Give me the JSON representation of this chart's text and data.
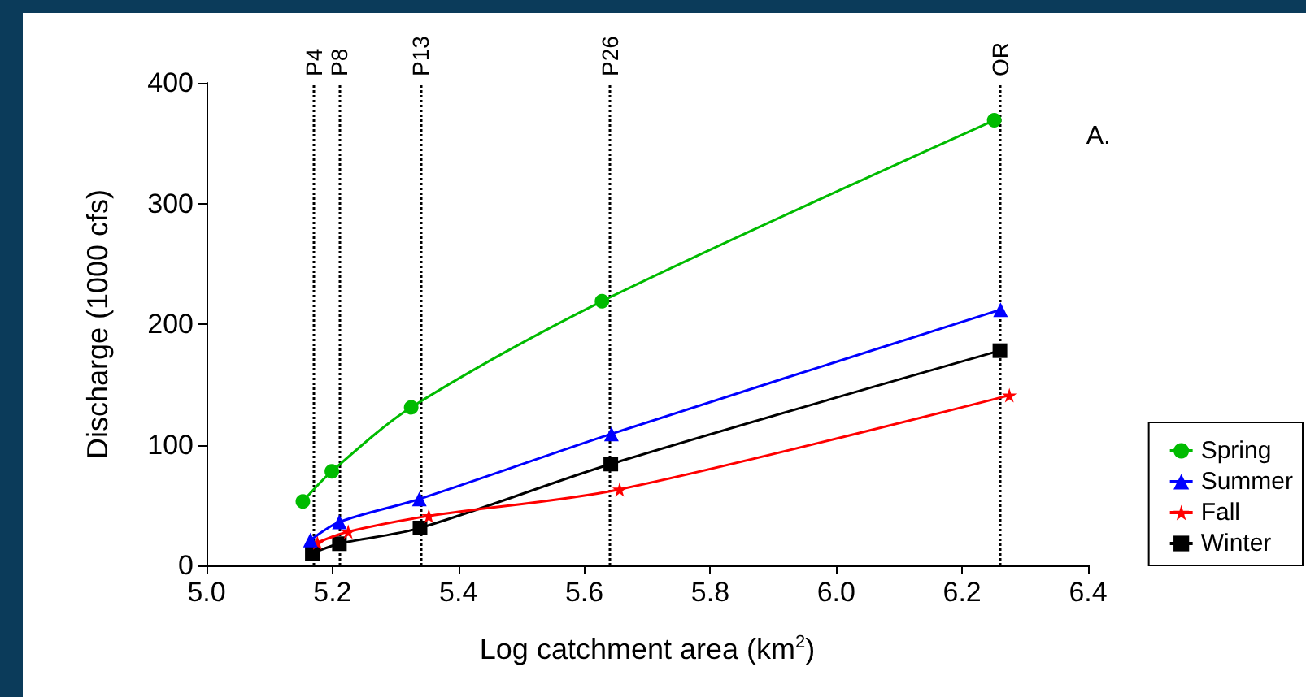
{
  "chart_data": {
    "type": "line",
    "xlabel": "Log catchment area (km$^{2}$)",
    "ylabel": "Discharge (1000 cfs)",
    "annotations": [
      "A."
    ],
    "xlim": [
      5.0,
      6.4
    ],
    "xticks": [
      {
        "value": 5.0,
        "label": "5.0"
      },
      {
        "value": 5.2,
        "label": "5.2"
      },
      {
        "value": 5.4,
        "label": "5.4"
      },
      {
        "value": 5.6,
        "label": "5.6"
      },
      {
        "value": 5.8,
        "label": "5.8"
      },
      {
        "value": 6.0,
        "label": "6.0"
      },
      {
        "value": 6.2,
        "label": "6.2"
      },
      {
        "value": 6.4,
        "label": "6.4"
      }
    ],
    "ylim": [
      0,
      400
    ],
    "yticks": [
      0,
      100,
      200,
      300,
      400
    ],
    "grid": false,
    "legend": "right",
    "ref_lines": [
      {
        "axis": "x",
        "value": 5.167,
        "label": "P4",
        "line_style": "dotted",
        "color": "#000000"
      },
      {
        "axis": "x",
        "value": 5.215,
        "label": "P8",
        "line_style": "dotted",
        "color": "#000000"
      },
      {
        "axis": "x",
        "value": 5.34,
        "label": "P13",
        "line_style": "dotted",
        "color": "#000000"
      },
      {
        "axis": "x",
        "value": 5.643,
        "label": "P26",
        "line_style": "dotted",
        "color": "#000000"
      },
      {
        "axis": "x",
        "value": 6.261,
        "label": "OR",
        "line_style": "dotted",
        "color": "#000000"
      }
    ],
    "series": [
      {
        "name": "Spring",
        "color": "#00bb00",
        "marker": "circle",
        "x": [
          5.153,
          5.199,
          5.325,
          5.628,
          6.251
        ],
        "values": [
          53,
          78,
          131,
          219,
          369
        ]
      },
      {
        "name": "Summer",
        "color": "#0000ff",
        "marker": "triangle",
        "x": [
          5.165,
          5.211,
          5.338,
          5.643,
          6.261
        ],
        "values": [
          21,
          36,
          55,
          109,
          212
        ]
      },
      {
        "name": "Fall",
        "color": "#ff0000",
        "marker": "star",
        "x": [
          5.176,
          5.225,
          5.353,
          5.656,
          6.275
        ],
        "values": [
          19,
          28,
          41,
          63,
          141
        ]
      },
      {
        "name": "Winter",
        "color": "#000000",
        "marker": "square",
        "x": [
          5.168,
          5.211,
          5.339,
          5.642,
          6.26
        ],
        "values": [
          10,
          18,
          31,
          84,
          178
        ]
      }
    ]
  }
}
